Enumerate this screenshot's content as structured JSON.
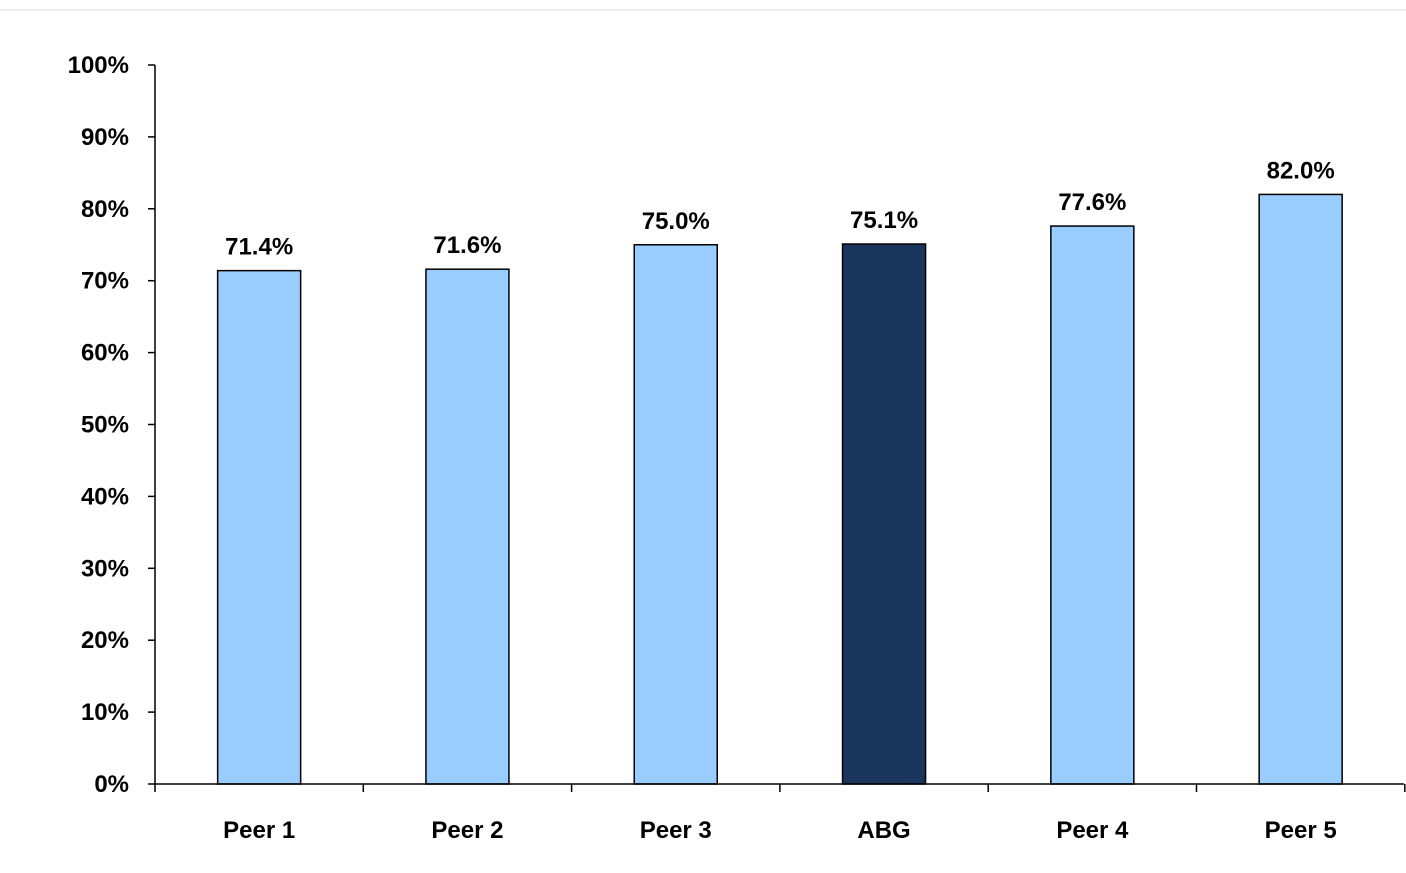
{
  "chart_data": {
    "type": "bar",
    "title": "",
    "xlabel": "",
    "ylabel": "",
    "categories": [
      "Peer 1",
      "Peer 2",
      "Peer 3",
      "ABG",
      "Peer 4",
      "Peer 5"
    ],
    "values": [
      71.4,
      71.6,
      75.0,
      75.1,
      77.6,
      82.0
    ],
    "data_labels": [
      "71.4%",
      "71.6%",
      "75.0%",
      "75.1%",
      "77.6%",
      "82.0%"
    ],
    "ylim": [
      0,
      100
    ],
    "yticks": [
      0,
      10,
      20,
      30,
      40,
      50,
      60,
      70,
      80,
      90,
      100
    ],
    "ytick_labels": [
      "0%",
      "10%",
      "20%",
      "30%",
      "40%",
      "50%",
      "60%",
      "70%",
      "80%",
      "90%",
      "100%"
    ],
    "highlight_category": "ABG",
    "colors": {
      "bar": "#99ccff",
      "highlight": "#1b365d",
      "outline": "#000000",
      "axis": "#000000"
    },
    "grid": false,
    "legend": "none"
  }
}
